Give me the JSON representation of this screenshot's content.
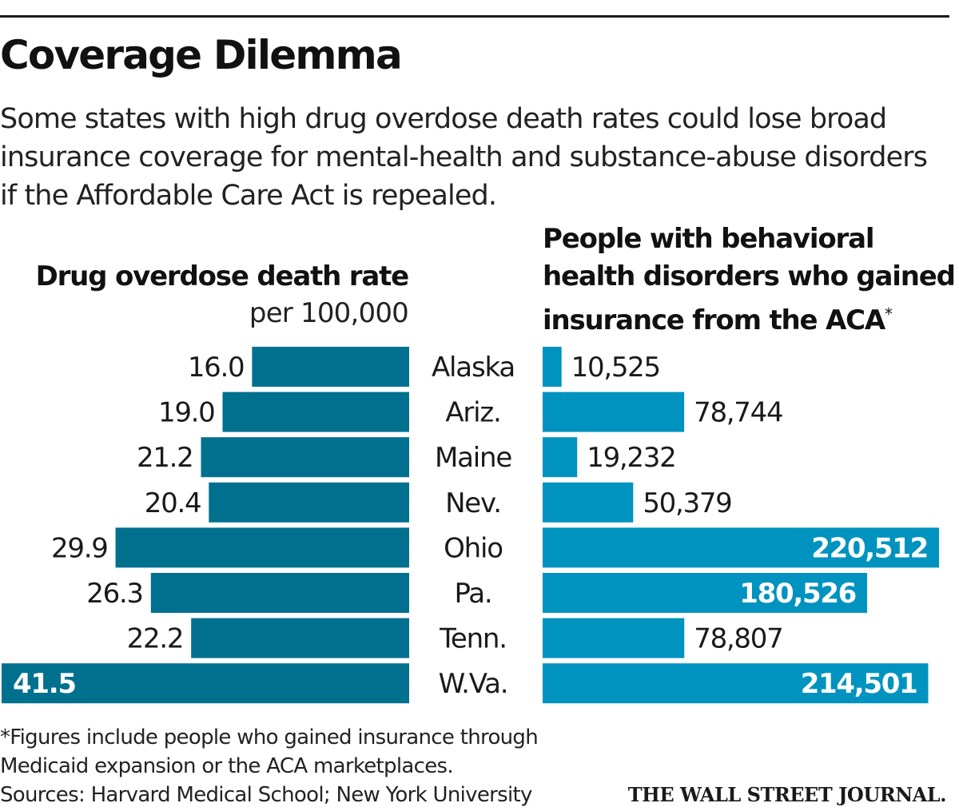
{
  "header": {
    "title": "Coverage Dilemma",
    "subtitle_lines": [
      "Some states with high drug overdose death rates could lose broad",
      "insurance coverage for mental-health and substance-abuse disorders",
      "if the Affordable Care Act is repealed."
    ]
  },
  "colors": {
    "left_bar": "#00708f",
    "right_bar": "#0093bf",
    "text_dark": "#1a1a1a",
    "text_inside": "#ffffff"
  },
  "chart_data": [
    {
      "type": "bar",
      "orientation": "horizontal",
      "direction": "leftward",
      "title": "Drug overdose death rate",
      "unit_label": "per 100,000",
      "categories": [
        "Alaska",
        "Ariz.",
        "Maine",
        "Nev.",
        "Ohio",
        "Pa.",
        "Tenn.",
        "W.Va."
      ],
      "values": [
        16.0,
        19.0,
        21.2,
        20.4,
        29.9,
        26.3,
        22.2,
        41.5
      ],
      "labels": [
        "16.0",
        "19.0",
        "21.2",
        "20.4",
        "29.9",
        "26.3",
        "22.2",
        "41.5"
      ],
      "xlim": [
        0,
        41.5
      ]
    },
    {
      "type": "bar",
      "orientation": "horizontal",
      "direction": "rightward",
      "title_lines": [
        "People with behavioral",
        "health disorders who gained",
        "insurance from the ACA"
      ],
      "title_marker": "*",
      "categories": [
        "Alaska",
        "Ariz.",
        "Maine",
        "Nev.",
        "Ohio",
        "Pa.",
        "Tenn.",
        "W.Va."
      ],
      "values": [
        10525,
        78744,
        19232,
        50379,
        220512,
        180526,
        78807,
        214501
      ],
      "labels": [
        "10,525",
        "78,744",
        "19,232",
        "50,379",
        "220,512",
        "180,526",
        "78,807",
        "214,501"
      ],
      "xlim": [
        0,
        220512
      ]
    }
  ],
  "footnote_lines": [
    "*Figures include people who gained insurance through",
    "Medicaid expansion or the ACA marketplaces.",
    "Sources: Harvard Medical School; New York University"
  ],
  "logo_text": "THE WALL STREET JOURNAL."
}
